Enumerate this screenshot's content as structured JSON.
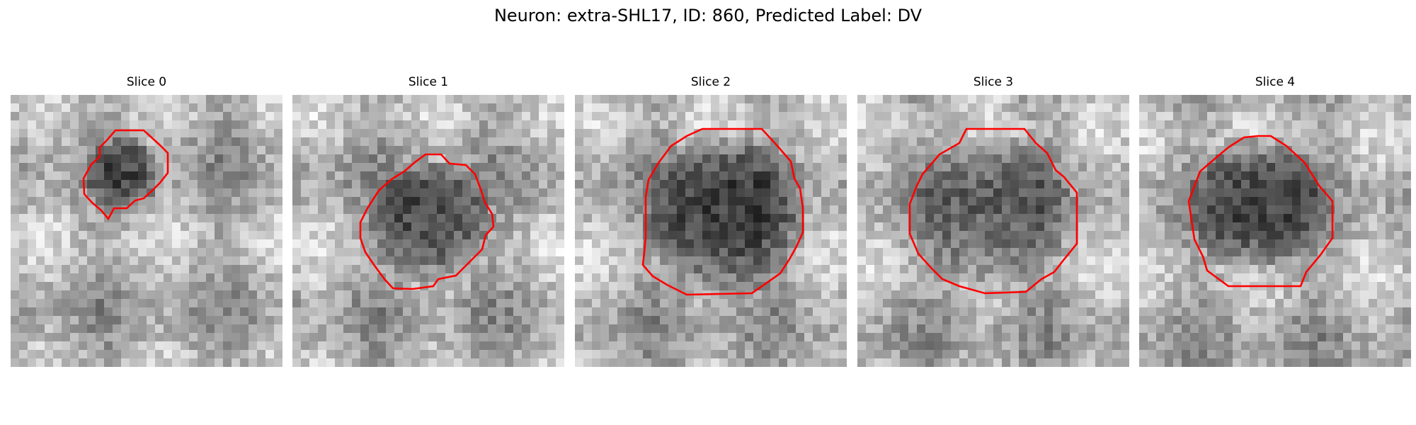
{
  "figure": {
    "title": "Neuron: extra-SHL17, ID: 860, Predicted Label: DV"
  },
  "colors": {
    "contour": "#ff0000",
    "background": "#ffffff",
    "colormap": "grayscale"
  },
  "panels": [
    {
      "title": "Slice 0",
      "seed": 11,
      "blob_darkness": 0.55,
      "contour_color": "#ff0000"
    },
    {
      "title": "Slice 1",
      "seed": 23,
      "blob_darkness": 0.6,
      "contour_color": "#ff0000"
    },
    {
      "title": "Slice 2",
      "seed": 37,
      "blob_darkness": 0.65,
      "contour_color": "#ff0000"
    },
    {
      "title": "Slice 3",
      "seed": 41,
      "blob_darkness": 0.45,
      "contour_color": "#ff0000"
    },
    {
      "title": "Slice 4",
      "seed": 53,
      "blob_darkness": 0.6,
      "contour_color": "#ff0000"
    }
  ]
}
